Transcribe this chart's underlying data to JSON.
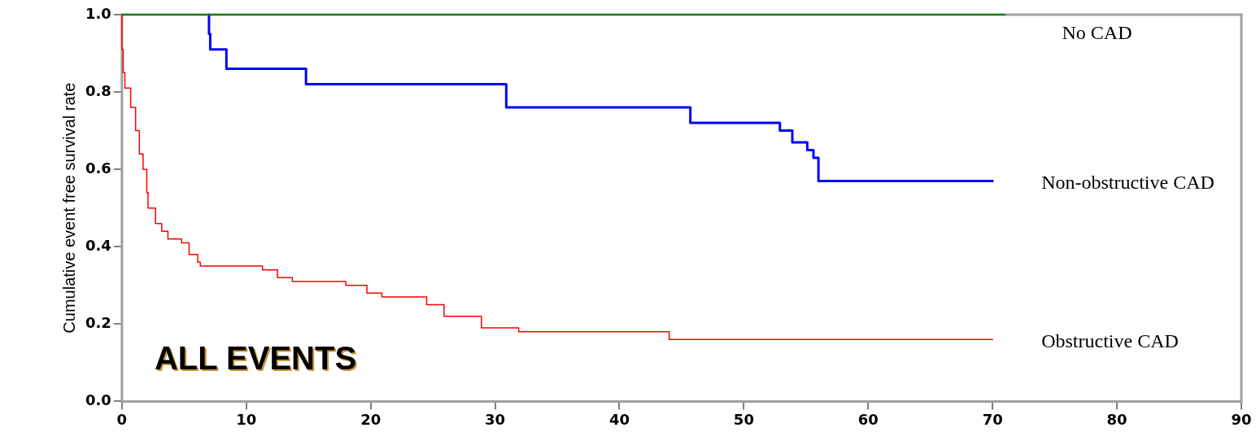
{
  "chart_data": {
    "type": "step",
    "ylabel": "Cumulative event free survival rate",
    "annotations": [
      "ALL EVENTS"
    ],
    "xlim": [
      0,
      90
    ],
    "xticks": [
      0,
      10,
      20,
      30,
      40,
      50,
      60,
      70,
      80,
      90
    ],
    "ylim": [
      0,
      1
    ],
    "yticks": [
      {
        "value": 0,
        "label": "0.0"
      },
      {
        "value": 0.2,
        "label": "0.2"
      },
      {
        "value": 0.4,
        "label": "0.4"
      },
      {
        "value": 0.6,
        "label": "0.6"
      },
      {
        "value": 0.8,
        "label": "0.8"
      },
      {
        "value": 1,
        "label": "1.0"
      }
    ],
    "grid": false,
    "legend": false,
    "marker": "none",
    "line_style": "solid",
    "series": [
      {
        "name": "No CAD",
        "color": "#008000",
        "x": [
          0,
          71
        ],
        "values": [
          1.0,
          1.0
        ]
      },
      {
        "name": "Non-obstructive CAD",
        "color": "#0000ff",
        "x": [
          7.0,
          7.1,
          8.4,
          14.8,
          30.9,
          45.7,
          52.9,
          53.9,
          55.1,
          55.6,
          56.0,
          56.4,
          70
        ],
        "values": [
          1.0,
          0.95,
          0.91,
          0.86,
          0.82,
          0.76,
          0.72,
          0.7,
          0.67,
          0.65,
          0.63,
          0.57,
          0.57
        ]
      },
      {
        "name": "Obstructive CAD",
        "color": "#ff0000",
        "x": [
          0,
          0.1,
          0.24,
          0.7,
          1.1,
          1.4,
          1.7,
          2.0,
          2.1,
          2.7,
          3.2,
          3.7,
          4.8,
          5.4,
          6.1,
          6.3,
          11.3,
          12.5,
          13.7,
          18.0,
          19.7,
          20.9,
          24.5,
          25.9,
          28.9,
          31.9,
          44.0,
          52.1,
          70
        ],
        "values": [
          1.0,
          0.91,
          0.85,
          0.81,
          0.76,
          0.7,
          0.64,
          0.6,
          0.54,
          0.5,
          0.46,
          0.44,
          0.42,
          0.41,
          0.38,
          0.36,
          0.35,
          0.34,
          0.32,
          0.31,
          0.3,
          0.28,
          0.27,
          0.25,
          0.22,
          0.19,
          0.18,
          0.16,
          0.16
        ]
      }
    ]
  }
}
